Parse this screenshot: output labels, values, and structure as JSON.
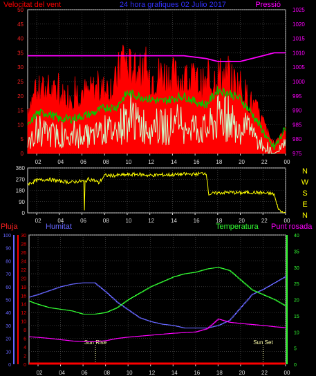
{
  "colors": {
    "wind": "#ff0000",
    "gust": "#ff0000",
    "avg": "#00cc00",
    "min": "#ccffcc",
    "pressure": "#ff00ff",
    "direction": "#ffff00",
    "rain": "#ff0000",
    "humidity": "#6666ff",
    "temperature": "#33ff33",
    "dewpoint": "#ff00ff",
    "axis": "#dddddd",
    "grid": "#555555"
  },
  "chart_data": [
    {
      "type": "line",
      "title": "24 hora grafiques  02 Julio 2017",
      "ylabel_left": "Velocitat del vent",
      "ylabel_right": "Pressió",
      "x_ticks": [
        "02",
        "04",
        "06",
        "08",
        "10",
        "12",
        "14",
        "16",
        "18",
        "20",
        "22",
        "00"
      ],
      "y_left_ticks": [
        0,
        5,
        10,
        15,
        20,
        25,
        30,
        35,
        40,
        45,
        50
      ],
      "y_right_ticks": [
        975,
        980,
        985,
        990,
        995,
        1000,
        1005,
        1010,
        1015,
        1020,
        1025
      ],
      "ylim_left": [
        0,
        50
      ],
      "ylim_right": [
        975,
        1025
      ],
      "xlim": [
        1.2,
        24.0
      ],
      "series": [
        {
          "key": "gust",
          "x": [
            1.2,
            2,
            3,
            4,
            5,
            6,
            6.5,
            7,
            8,
            9,
            9.7,
            10,
            11,
            12,
            13,
            14,
            15,
            16,
            17,
            18,
            19,
            20,
            21,
            22,
            22.5,
            23,
            23.5,
            24
          ],
          "values": [
            20,
            27,
            28,
            25,
            26,
            28,
            26,
            28,
            28,
            31,
            45,
            38,
            36,
            34,
            35,
            34,
            33,
            32,
            29,
            35,
            33,
            30,
            22,
            14,
            8,
            4,
            8,
            12
          ]
        },
        {
          "key": "avg",
          "x": [
            1.2,
            2,
            3,
            4,
            5,
            6,
            7,
            8,
            9,
            10,
            11,
            12,
            13,
            14,
            15,
            16,
            17,
            18,
            19,
            20,
            21,
            22,
            22.5,
            23,
            23.5,
            24
          ],
          "values": [
            9,
            14,
            14,
            12,
            12,
            13,
            14,
            16,
            16,
            21,
            20,
            19,
            18,
            19,
            20,
            18,
            17,
            22,
            21,
            19,
            14,
            8,
            4,
            2,
            5,
            9
          ]
        },
        {
          "key": "min",
          "x": [
            1.2,
            2,
            3,
            4,
            5,
            6,
            7,
            8,
            9,
            10,
            11,
            12,
            13,
            14,
            15,
            16,
            17,
            18,
            19,
            20,
            21,
            22,
            22.5,
            23,
            23.5,
            24
          ],
          "values": [
            3,
            7,
            7,
            6,
            5,
            6,
            6,
            8,
            8,
            12,
            10,
            10,
            9,
            10,
            11,
            9,
            8,
            12,
            12,
            10,
            7,
            2,
            0,
            0,
            1,
            3
          ]
        },
        {
          "key": "pressure",
          "axis": "right",
          "x": [
            1.2,
            4,
            8,
            12,
            15,
            17,
            18,
            19,
            20,
            21,
            22,
            23,
            24
          ],
          "values": [
            1009,
            1009,
            1009,
            1009,
            1009,
            1008,
            1007,
            1007,
            1007,
            1008,
            1009,
            1010,
            1010
          ]
        }
      ]
    },
    {
      "type": "line",
      "ylabel_right_letters": [
        "N",
        "W",
        "S",
        "E",
        "N"
      ],
      "y_ticks": [
        0,
        90,
        180,
        270,
        360
      ],
      "ylim": [
        0,
        360
      ],
      "xlim": [
        1.2,
        24.0
      ],
      "x_ticks": [
        "02",
        "04",
        "06",
        "08",
        "10",
        "12",
        "14",
        "16",
        "18",
        "20",
        "22",
        "00"
      ],
      "series": [
        {
          "key": "direction",
          "x": [
            1.2,
            2,
            3,
            4,
            5,
            6,
            6.3,
            6.5,
            7,
            7.5,
            8,
            9,
            10,
            11,
            12,
            13,
            14,
            15,
            16,
            16.5,
            17,
            17.2,
            18,
            19,
            20,
            21,
            22,
            23,
            23.2,
            23.5,
            24
          ],
          "values": [
            230,
            260,
            270,
            255,
            245,
            255,
            250,
            270,
            265,
            240,
            300,
            300,
            305,
            310,
            300,
            305,
            305,
            310,
            310,
            315,
            320,
            150,
            160,
            165,
            160,
            165,
            160,
            150,
            70,
            15,
            0
          ]
        }
      ]
    },
    {
      "type": "line",
      "ylabel_rain": "Pluja",
      "ylabel_humidity": "Humitat",
      "ylabel_temperature": "Temperatura",
      "ylabel_dewpoint": "Punt rosada",
      "x_ticks": [
        "02",
        "04",
        "06",
        "08",
        "10",
        "12",
        "14",
        "16",
        "18",
        "20",
        "22",
        "00"
      ],
      "y_humidity_ticks": [
        0,
        10,
        20,
        30,
        40,
        50,
        60,
        70,
        80,
        90,
        100
      ],
      "y_rain_ticks": [
        0,
        2,
        4,
        6,
        8,
        10,
        12,
        14,
        16,
        18,
        20,
        22,
        24,
        26,
        28,
        30
      ],
      "y_temp_ticks": [
        0,
        5,
        10,
        15,
        20,
        25,
        30,
        35,
        40
      ],
      "ylim_humidity": [
        0,
        100
      ],
      "ylim_rain": [
        0,
        30
      ],
      "ylim_temp": [
        0,
        40
      ],
      "xlim": [
        1.2,
        24.0
      ],
      "annotations": [
        {
          "label": "Sun Rise",
          "x": 7.1
        },
        {
          "label": "Sun Set",
          "x": 22.0
        }
      ],
      "series": [
        {
          "key": "humidity",
          "axis": "humidity",
          "x": [
            1.2,
            2,
            3,
            4,
            5,
            6,
            7,
            8,
            9,
            10,
            11,
            12,
            13,
            14,
            15,
            16,
            17,
            18,
            19,
            20,
            21,
            22,
            23,
            24
          ],
          "values": [
            52,
            54,
            57,
            60,
            62,
            63,
            63,
            56,
            48,
            42,
            36,
            33,
            31,
            30,
            28,
            28,
            28,
            30,
            34,
            44,
            54,
            58,
            63,
            68
          ]
        },
        {
          "key": "temperature",
          "axis": "temp",
          "x": [
            1.2,
            2,
            3,
            4,
            5,
            6,
            7,
            8,
            9,
            10,
            11,
            12,
            13,
            14,
            15,
            16,
            17,
            18,
            19,
            20,
            21,
            22,
            23,
            24
          ],
          "values": [
            19.5,
            18.5,
            17.5,
            17,
            16.5,
            15.5,
            15.5,
            16,
            17.5,
            20,
            22,
            24,
            25.5,
            27,
            28,
            28.5,
            29.5,
            30,
            29,
            26,
            23,
            21.5,
            20,
            18
          ]
        },
        {
          "key": "dewpoint",
          "axis": "temp",
          "x": [
            1.2,
            2,
            3,
            4,
            5,
            6,
            7,
            8,
            9,
            10,
            11,
            12,
            13,
            14,
            15,
            16,
            17,
            18,
            19,
            20,
            21,
            22,
            23,
            24
          ],
          "values": [
            8.5,
            8.3,
            8,
            7.6,
            7.2,
            7,
            7,
            7.3,
            8,
            8.4,
            8.7,
            9,
            9.3,
            9.6,
            9.8,
            10,
            11,
            14,
            13,
            12.6,
            12.3,
            12,
            11.6,
            11.3
          ]
        },
        {
          "key": "rain",
          "axis": "rain",
          "x": [
            1.2,
            24
          ],
          "values": [
            0,
            0
          ]
        }
      ]
    }
  ]
}
